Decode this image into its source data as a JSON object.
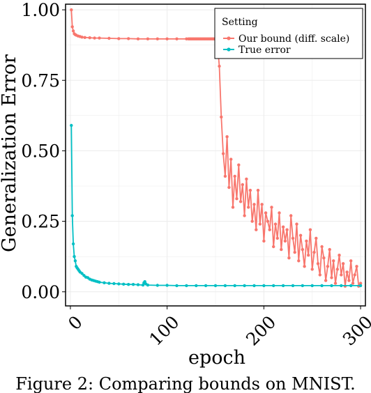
{
  "figure": {
    "caption": "Figure 2: Comparing bounds on MNIST."
  },
  "chart_data": {
    "type": "line",
    "title": "",
    "xlabel": "epoch",
    "ylabel": "Generalization Error",
    "xlim": [
      -5,
      305
    ],
    "ylim": [
      -0.05,
      1.02
    ],
    "x_ticks": [
      0,
      100,
      200,
      300
    ],
    "x_tick_labels": [
      "0",
      "100",
      "200",
      "300"
    ],
    "y_ticks": [
      0.0,
      0.25,
      0.5,
      0.75,
      1.0
    ],
    "y_tick_labels": [
      "0.00",
      "0.25",
      "0.50",
      "0.75",
      "1.00"
    ],
    "grid": true,
    "legend": {
      "title": "Setting",
      "position": "top-right"
    },
    "colors": {
      "our_bound": "#f8766d",
      "true_error": "#00bfc4",
      "grid": "#ebebeb"
    },
    "series": [
      {
        "name": "Our bound (diff. scale)",
        "color": "#f8766d",
        "x": [
          1,
          2,
          3,
          4,
          5,
          6,
          8,
          10,
          12,
          15,
          20,
          25,
          30,
          40,
          50,
          60,
          70,
          80,
          90,
          100,
          110,
          120,
          122,
          123,
          124,
          125,
          126,
          127,
          128,
          129,
          130,
          131,
          132,
          133,
          134,
          135,
          136,
          137,
          138,
          139,
          140,
          141,
          142,
          143,
          144,
          145,
          146,
          147,
          148,
          149,
          150,
          152,
          154,
          156,
          158,
          160,
          162,
          164,
          166,
          168,
          170,
          172,
          174,
          176,
          178,
          180,
          182,
          184,
          186,
          188,
          190,
          192,
          194,
          196,
          198,
          200,
          202,
          204,
          206,
          208,
          210,
          212,
          214,
          216,
          218,
          220,
          222,
          224,
          226,
          228,
          230,
          232,
          234,
          236,
          238,
          240,
          242,
          244,
          246,
          248,
          250,
          252,
          254,
          256,
          258,
          260,
          262,
          264,
          266,
          268,
          270,
          272,
          274,
          276,
          278,
          280,
          282,
          284,
          286,
          288,
          290,
          292,
          294,
          296,
          298,
          300
        ],
        "values": [
          1.0,
          0.94,
          0.925,
          0.915,
          0.912,
          0.91,
          0.907,
          0.905,
          0.903,
          0.902,
          0.901,
          0.9,
          0.9,
          0.899,
          0.898,
          0.898,
          0.897,
          0.897,
          0.897,
          0.897,
          0.897,
          0.897,
          0.897,
          0.897,
          0.897,
          0.897,
          0.897,
          0.897,
          0.897,
          0.897,
          0.897,
          0.897,
          0.897,
          0.897,
          0.897,
          0.897,
          0.897,
          0.897,
          0.897,
          0.897,
          0.897,
          0.897,
          0.897,
          0.897,
          0.897,
          0.897,
          0.897,
          0.897,
          0.897,
          0.897,
          0.897,
          0.88,
          0.8,
          0.62,
          0.49,
          0.41,
          0.55,
          0.37,
          0.47,
          0.3,
          0.41,
          0.33,
          0.45,
          0.32,
          0.38,
          0.27,
          0.4,
          0.3,
          0.36,
          0.25,
          0.31,
          0.22,
          0.36,
          0.24,
          0.31,
          0.18,
          0.28,
          0.25,
          0.22,
          0.3,
          0.16,
          0.24,
          0.19,
          0.28,
          0.15,
          0.23,
          0.18,
          0.22,
          0.12,
          0.27,
          0.19,
          0.14,
          0.24,
          0.11,
          0.2,
          0.15,
          0.09,
          0.18,
          0.13,
          0.22,
          0.08,
          0.14,
          0.19,
          0.1,
          0.06,
          0.16,
          0.12,
          0.04,
          0.09,
          0.15,
          0.05,
          0.11,
          0.03,
          0.08,
          0.13,
          0.06,
          0.1,
          0.02,
          0.07,
          0.04,
          0.11,
          0.03,
          0.06,
          0.09,
          0.02,
          0.03
        ]
      },
      {
        "name": "True error",
        "color": "#00bfc4",
        "x": [
          1,
          2,
          3,
          4,
          5,
          6,
          7,
          8,
          9,
          10,
          12,
          14,
          16,
          18,
          20,
          22,
          24,
          26,
          28,
          30,
          35,
          40,
          45,
          50,
          55,
          60,
          65,
          70,
          75,
          76,
          77,
          78,
          80,
          90,
          100,
          110,
          120,
          130,
          140,
          150,
          160,
          170,
          180,
          190,
          200,
          210,
          220,
          230,
          240,
          250,
          260,
          270,
          280,
          290,
          300
        ],
        "values": [
          0.59,
          0.27,
          0.17,
          0.125,
          0.11,
          0.09,
          0.085,
          0.08,
          0.075,
          0.07,
          0.065,
          0.058,
          0.052,
          0.05,
          0.045,
          0.042,
          0.04,
          0.038,
          0.036,
          0.034,
          0.032,
          0.03,
          0.029,
          0.028,
          0.027,
          0.026,
          0.026,
          0.025,
          0.024,
          0.032,
          0.036,
          0.028,
          0.024,
          0.023,
          0.023,
          0.022,
          0.022,
          0.022,
          0.022,
          0.022,
          0.022,
          0.022,
          0.022,
          0.022,
          0.022,
          0.022,
          0.022,
          0.022,
          0.022,
          0.022,
          0.022,
          0.022,
          0.022,
          0.022,
          0.022
        ]
      }
    ]
  }
}
